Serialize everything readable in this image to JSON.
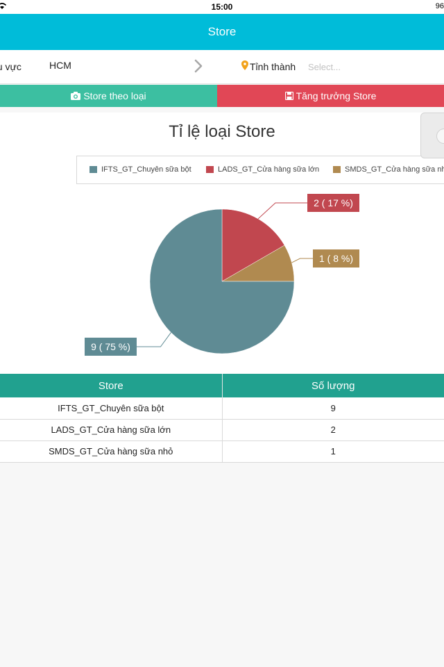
{
  "status_bar": {
    "time": "15:00",
    "battery": "96"
  },
  "navbar": {
    "title": "Store"
  },
  "filter": {
    "region_label": "hu vực",
    "region_value": "HCM",
    "province_label": "Tỉnh thành",
    "province_placeholder": "Select..."
  },
  "tabs": [
    {
      "label": "Store theo loại",
      "icon": "camera-icon",
      "color": "#3cbfa1"
    },
    {
      "label": "Tăng trưởng Store",
      "icon": "save-icon",
      "color": "#e14756"
    }
  ],
  "chart_data": {
    "type": "pie",
    "title": "Tỉ lệ loại Store",
    "legend_position": "top",
    "categories": [
      "IFTS_GT_Chuyên sữa bột",
      "LADS_GT_Cửa hàng sữa lớn",
      "SMDS_GT_Cửa hàng sữa nhỏ"
    ],
    "values": [
      9,
      2,
      1
    ],
    "percents": [
      75,
      17,
      8
    ],
    "colors": [
      "#5f8b94",
      "#c1474f",
      "#b08a50"
    ],
    "data_labels": [
      "9 ( 75 %)",
      "2 ( 17 %)",
      "1 ( 8 %)"
    ]
  },
  "table": {
    "headers": [
      "Store",
      "Số lượng"
    ],
    "rows": [
      [
        "IFTS_GT_Chuyên sữa bột",
        "9"
      ],
      [
        "LADS_GT_Cửa hàng sữa lớn",
        "2"
      ],
      [
        "SMDS_GT_Cửa hàng sữa nhỏ",
        "1"
      ]
    ]
  }
}
